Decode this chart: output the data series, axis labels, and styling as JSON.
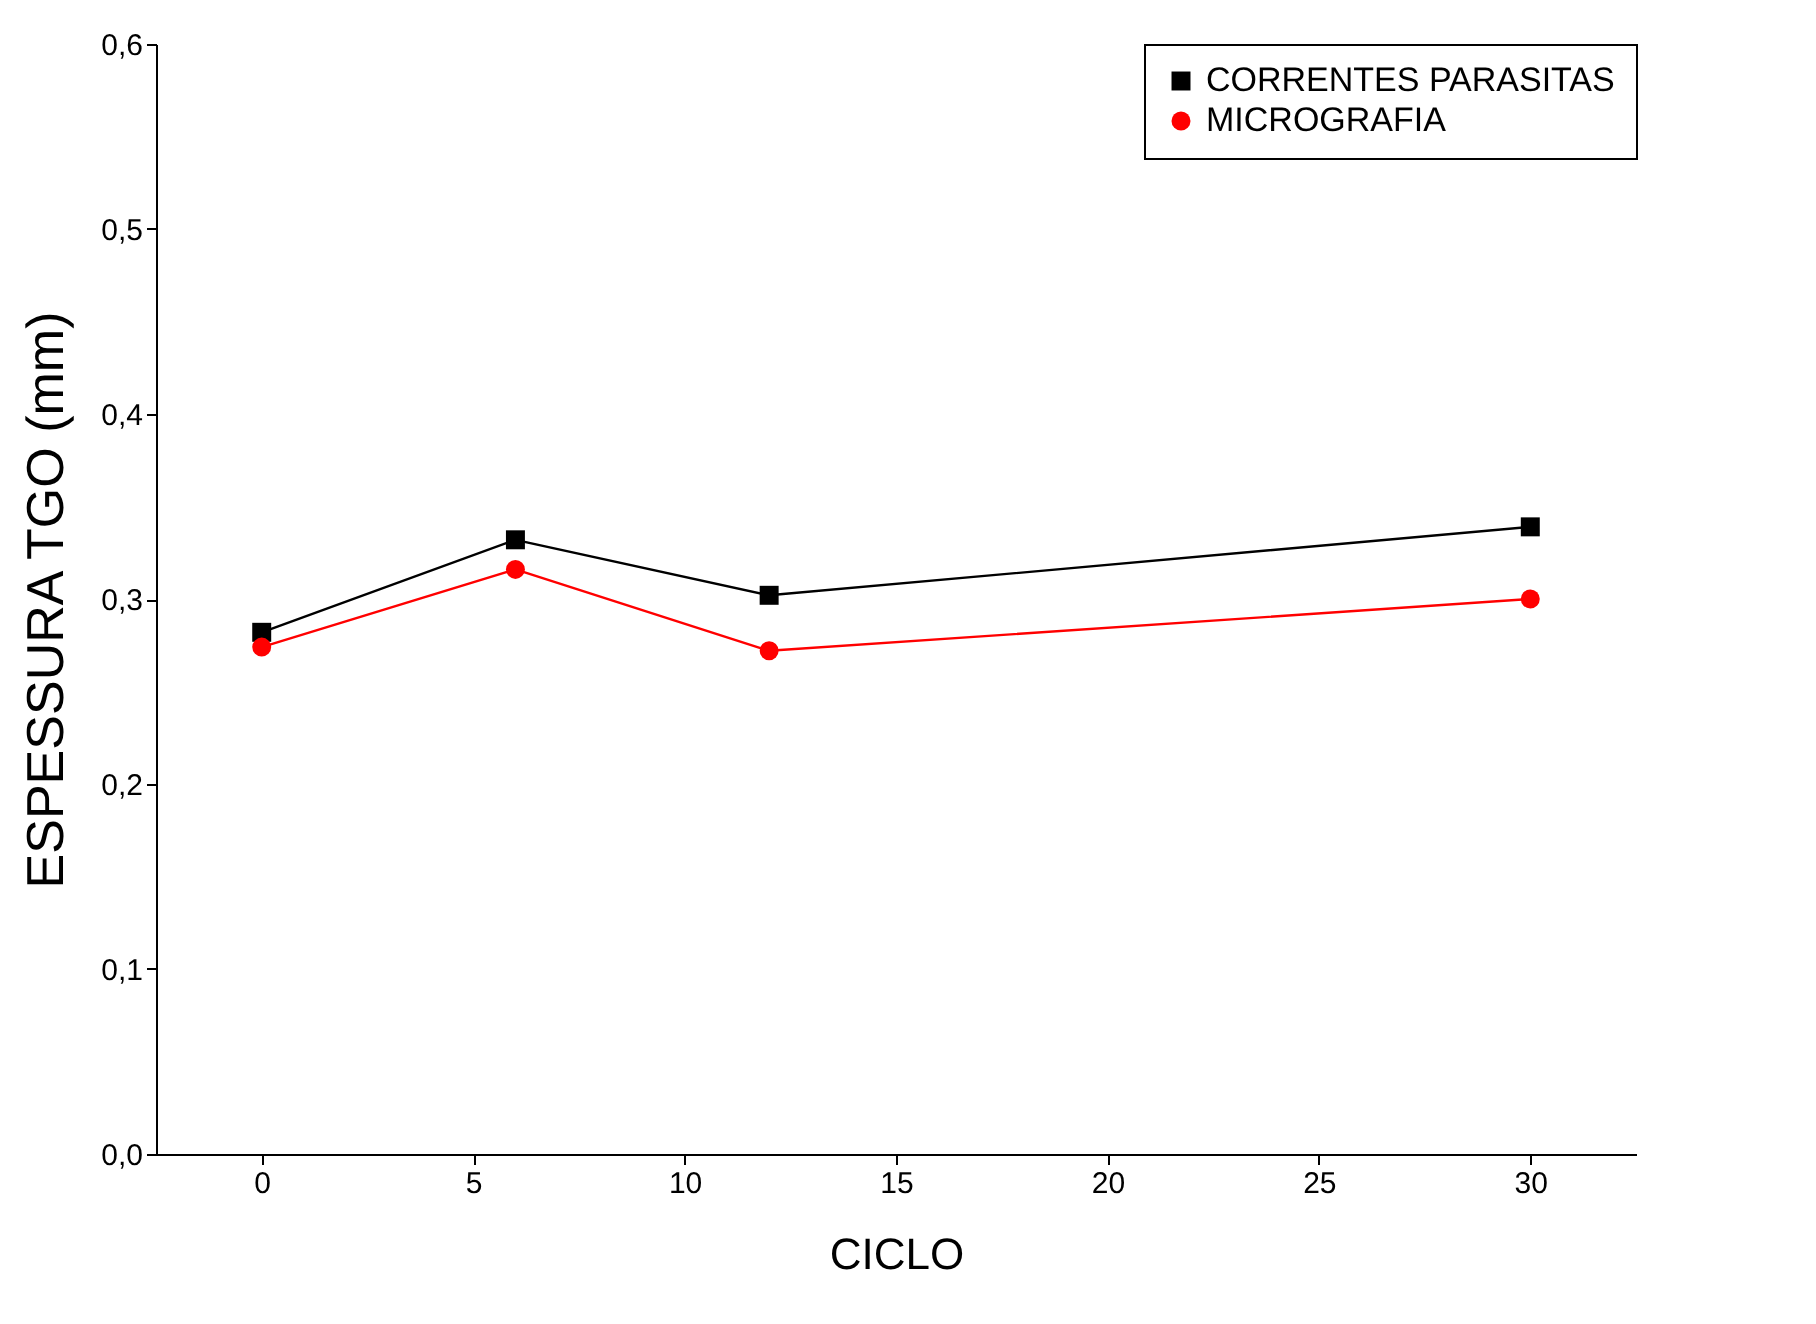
{
  "chart_data": {
    "type": "line",
    "xlabel": "CICLO",
    "ylabel": "ESPESSURA TGO (mm)",
    "x": [
      0,
      6,
      12,
      30
    ],
    "series": [
      {
        "name": "CORRENTES PARASITAS",
        "color": "#000000",
        "marker": "square",
        "values": [
          0.282,
          0.332,
          0.302,
          0.339
        ]
      },
      {
        "name": "MICROGRAFIA",
        "color": "#ff0000",
        "marker": "circle",
        "values": [
          0.274,
          0.316,
          0.272,
          0.3
        ]
      }
    ],
    "xlim": [
      -2.5,
      32.5
    ],
    "xticks": [
      0,
      5,
      10,
      15,
      20,
      25,
      30
    ],
    "ylim": [
      0,
      0.6
    ],
    "yticks": [
      {
        "value": 0,
        "label": "0,0"
      },
      {
        "value": 0.1,
        "label": "0,1"
      },
      {
        "value": 0.2,
        "label": "0,2"
      },
      {
        "value": 0.3,
        "label": "0,3"
      },
      {
        "value": 0.4,
        "label": "0,4"
      },
      {
        "value": 0.5,
        "label": "0,5"
      },
      {
        "value": 0.6,
        "label": "0,6"
      }
    ],
    "grid": false,
    "legend": "top right",
    "line_style": "solid"
  }
}
